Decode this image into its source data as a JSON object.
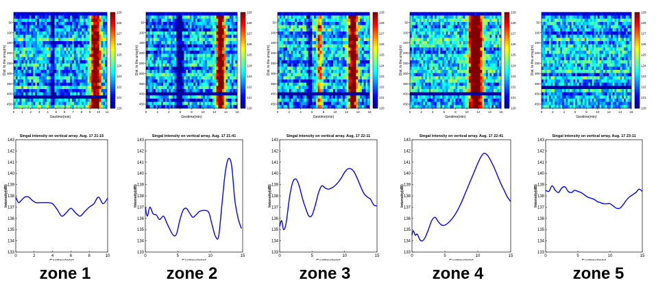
{
  "zones": [
    {
      "label": "zone 1"
    },
    {
      "label": "zone 2"
    },
    {
      "label": "zone 3"
    },
    {
      "label": "zone 4"
    },
    {
      "label": "zone 5"
    }
  ],
  "colors": {
    "line": "#0000ff",
    "axis": "#000000",
    "colormap": [
      "#00008f",
      "#0000ff",
      "#0080ff",
      "#00ffff",
      "#80ff80",
      "#ffff00",
      "#ff8000",
      "#ff0000",
      "#800000"
    ]
  },
  "chart_data": [
    {
      "type": "heatmap",
      "ylabel": "Dist. to the array(m)",
      "xlabel": "Geotime(min)",
      "xlim": [
        0,
        11
      ],
      "xticks": [
        0,
        1,
        2,
        3,
        4,
        5,
        6,
        7,
        8,
        9,
        10,
        11
      ],
      "ylim": [
        0,
        470
      ],
      "yticks": [
        50,
        100,
        150,
        200,
        250,
        300,
        350,
        400,
        450
      ],
      "colorbar": {
        "min": 120,
        "max": 129,
        "ticks": [
          129,
          128,
          127,
          126,
          125,
          124,
          123,
          122,
          121,
          120
        ]
      },
      "hot_columns": [
        9.4,
        9.9
      ],
      "dark_columns": [
        4.6
      ],
      "dark_rows": [
        415
      ]
    },
    {
      "type": "heatmap",
      "ylabel": "Dist. to the array(m)",
      "xlabel": "Geotime(min)",
      "xlim": [
        0,
        16
      ],
      "xticks": [
        0,
        2,
        4,
        6,
        8,
        10,
        12,
        14,
        16
      ],
      "ylim": [
        0,
        470
      ],
      "yticks": [
        50,
        100,
        150,
        200,
        250,
        300,
        350,
        400,
        450
      ],
      "colorbar": {
        "min": 120,
        "max": 129,
        "ticks": [
          129,
          128,
          127,
          126,
          125,
          124,
          123,
          122,
          121,
          120
        ]
      },
      "hot_columns": [
        12.8,
        13.3
      ],
      "dark_columns": [
        5.6,
        6.2
      ],
      "dark_rows": [
        400
      ]
    },
    {
      "type": "heatmap",
      "ylabel": "Dist. to the array(m)",
      "xlabel": "Geotime(min)",
      "xlim": [
        0,
        16
      ],
      "xticks": [
        0,
        2,
        4,
        6,
        8,
        10,
        12,
        14,
        16
      ],
      "ylim": [
        0,
        470
      ],
      "yticks": [
        50,
        100,
        150,
        200,
        250,
        300,
        350,
        400,
        450
      ],
      "colorbar": {
        "min": 120,
        "max": 129,
        "ticks": [
          129,
          128,
          127,
          126,
          125,
          124,
          123,
          122,
          121,
          120
        ]
      },
      "hot_columns": [
        7.1,
        12.8,
        13.4
      ],
      "dark_columns": [
        5.6,
        6.7
      ],
      "dark_rows": [
        400
      ]
    },
    {
      "type": "heatmap",
      "ylabel": "Dist. to the array(m)",
      "xlabel": "Geotime(min)",
      "xlim": [
        0,
        16
      ],
      "xticks": [
        0,
        2,
        4,
        6,
        8,
        10,
        12,
        14,
        16
      ],
      "ylim": [
        0,
        470
      ],
      "yticks": [
        50,
        100,
        150,
        200,
        250,
        300,
        350,
        400,
        450
      ],
      "colorbar": {
        "min": 120,
        "max": 129,
        "ticks": [
          129,
          128,
          127,
          126,
          125,
          124,
          123,
          122,
          121,
          120
        ]
      },
      "hot_columns": [
        10.8,
        11.5,
        12.2
      ],
      "dark_columns": [],
      "dark_rows": [
        400
      ]
    },
    {
      "type": "heatmap",
      "ylabel": "Dist. to the array(m)",
      "xlabel": "Geotime(min)",
      "xlim": [
        0,
        16
      ],
      "xticks": [
        0,
        2,
        4,
        6,
        8,
        10,
        12,
        14,
        16
      ],
      "ylim": [
        0,
        470
      ],
      "yticks": [
        50,
        100,
        150,
        200,
        250,
        300,
        350,
        400,
        450
      ],
      "colorbar": {
        "min": 120,
        "max": 129,
        "ticks": [
          129,
          128,
          127,
          126,
          125,
          124,
          123,
          122,
          121,
          120
        ]
      },
      "hot_columns": [],
      "dark_columns": [],
      "dark_rows": [
        370
      ]
    },
    {
      "type": "line",
      "title": "Singal intensity on vertical array. Aug. 17 21:15",
      "xlabel": "Geotime(min)",
      "ylabel": "Intensity(dB)",
      "xlim": [
        0,
        10
      ],
      "xticks": [
        0,
        2,
        4,
        6,
        8,
        10
      ],
      "ylim": [
        133,
        143
      ],
      "yticks": [
        133,
        134,
        135,
        136,
        137,
        138,
        139,
        140,
        141,
        142,
        143
      ],
      "x": [
        0,
        0.3,
        0.6,
        1.0,
        1.4,
        1.8,
        2.2,
        2.6,
        3.0,
        3.5,
        4.0,
        4.5,
        5.0,
        5.5,
        6.0,
        6.5,
        7.0,
        7.5,
        8.0,
        8.5,
        9.0,
        9.5,
        10.0
      ],
      "values": [
        137.9,
        137.4,
        137.6,
        137.9,
        137.9,
        137.6,
        137.4,
        137.4,
        137.4,
        137.4,
        137.3,
        136.8,
        136.2,
        136.5,
        136.9,
        136.5,
        136.2,
        136.6,
        137.0,
        137.3,
        137.9,
        137.3,
        137.8
      ]
    },
    {
      "type": "line",
      "title": "Singal intensity on vertical array. Aug. 17 21:41",
      "xlabel": "Geotime(min)",
      "ylabel": "Intensity(dB)",
      "xlim": [
        0,
        15
      ],
      "xticks": [
        0,
        5,
        10,
        15
      ],
      "ylim": [
        133,
        143
      ],
      "yticks": [
        133,
        134,
        135,
        136,
        137,
        138,
        139,
        140,
        141,
        142,
        143
      ],
      "x": [
        0,
        0.3,
        0.7,
        1.2,
        1.7,
        2.2,
        2.8,
        3.3,
        3.8,
        4.3,
        4.8,
        5.3,
        5.8,
        6.3,
        6.8,
        7.3,
        7.8,
        8.3,
        8.8,
        9.3,
        9.8,
        10.3,
        10.8,
        11.3,
        11.8,
        12.3,
        12.8,
        13.3,
        13.8,
        14.3,
        14.8
      ],
      "values": [
        137.0,
        136.2,
        137.0,
        136.4,
        136.3,
        135.9,
        136.2,
        135.6,
        135.0,
        134.5,
        134.6,
        135.8,
        136.7,
        136.9,
        136.5,
        136.1,
        136.3,
        136.6,
        136.7,
        136.7,
        136.5,
        135.4,
        134.4,
        134.4,
        137.2,
        140.0,
        141.3,
        140.7,
        137.6,
        136.0,
        135.1
      ]
    },
    {
      "type": "line",
      "title": "Singal intensity on vertical array. Aug. 17 22:11",
      "xlabel": "Geotime(min)",
      "ylabel": "Intensity(dB)",
      "xlim": [
        0,
        15
      ],
      "xticks": [
        0,
        5,
        10,
        15
      ],
      "ylim": [
        133,
        143
      ],
      "yticks": [
        133,
        134,
        135,
        136,
        137,
        138,
        139,
        140,
        141,
        142,
        143
      ],
      "x": [
        0,
        0.3,
        0.6,
        1.0,
        1.5,
        2.0,
        2.5,
        3.0,
        3.5,
        4.0,
        4.5,
        5.0,
        5.5,
        6.0,
        6.5,
        7.0,
        7.5,
        8.0,
        8.5,
        9.0,
        9.5,
        10.0,
        10.5,
        11.0,
        11.5,
        12.0,
        12.5,
        13.0,
        13.5,
        14.0,
        14.5,
        15.0
      ],
      "values": [
        135.3,
        135.8,
        135.0,
        135.6,
        137.8,
        139.2,
        139.5,
        138.9,
        137.8,
        136.9,
        136.2,
        136.3,
        137.2,
        138.3,
        138.9,
        138.7,
        138.6,
        138.7,
        138.9,
        139.2,
        139.6,
        140.1,
        140.4,
        140.4,
        140.1,
        139.5,
        138.8,
        138.2,
        137.9,
        137.7,
        137.2,
        137.1
      ]
    },
    {
      "type": "line",
      "title": "Singal intensity on vertical array. Aug. 17 22:41",
      "xlabel": "Geotime(min)",
      "ylabel": "Intensity(dB)",
      "xlim": [
        0,
        15
      ],
      "xticks": [
        0,
        5,
        10,
        15
      ],
      "ylim": [
        133,
        143
      ],
      "yticks": [
        133,
        134,
        135,
        136,
        137,
        138,
        139,
        140,
        141,
        142,
        143
      ],
      "x": [
        0,
        0.2,
        0.5,
        0.8,
        1.2,
        1.6,
        2.0,
        2.5,
        3.0,
        3.5,
        4.0,
        4.5,
        5.0,
        5.5,
        6.0,
        6.5,
        7.0,
        7.5,
        8.0,
        8.5,
        9.0,
        9.5,
        10.0,
        10.5,
        11.0,
        11.5,
        12.0,
        12.5,
        13.0,
        13.5,
        14.0,
        14.5,
        15.0
      ],
      "values": [
        134.5,
        134.9,
        134.5,
        134.6,
        134.1,
        134.0,
        134.3,
        135.0,
        135.8,
        136.1,
        135.7,
        135.4,
        135.4,
        135.6,
        135.9,
        136.3,
        136.8,
        137.4,
        138.1,
        138.8,
        139.5,
        140.2,
        140.9,
        141.5,
        141.8,
        141.6,
        141.1,
        140.5,
        139.8,
        139.1,
        138.5,
        137.9,
        137.5
      ]
    },
    {
      "type": "line",
      "title": "Singal intensity on vertical array. Aug. 17 23:11",
      "xlabel": "Geotime(min)",
      "ylabel": "Intensity(dB)",
      "xlim": [
        0,
        15
      ],
      "xticks": [
        0,
        5,
        10,
        15
      ],
      "ylim": [
        133,
        143
      ],
      "yticks": [
        133,
        134,
        135,
        136,
        137,
        138,
        139,
        140,
        141,
        142,
        143
      ],
      "x": [
        0,
        0.5,
        1.0,
        1.5,
        2.0,
        2.5,
        3.0,
        3.5,
        4.0,
        4.5,
        5.0,
        5.5,
        6.0,
        6.5,
        7.0,
        7.5,
        8.0,
        8.5,
        9.0,
        9.5,
        10.0,
        10.5,
        11.0,
        11.5,
        12.0,
        12.5,
        13.0,
        13.5,
        14.0,
        14.5,
        15.0
      ],
      "values": [
        138.5,
        138.4,
        138.9,
        138.5,
        138.3,
        138.7,
        138.8,
        138.4,
        138.3,
        138.5,
        138.4,
        138.3,
        138.1,
        137.9,
        137.8,
        137.7,
        137.5,
        137.4,
        137.3,
        137.3,
        137.3,
        137.1,
        136.9,
        136.9,
        137.2,
        137.6,
        137.9,
        138.1,
        138.3,
        138.6,
        138.4
      ]
    }
  ]
}
